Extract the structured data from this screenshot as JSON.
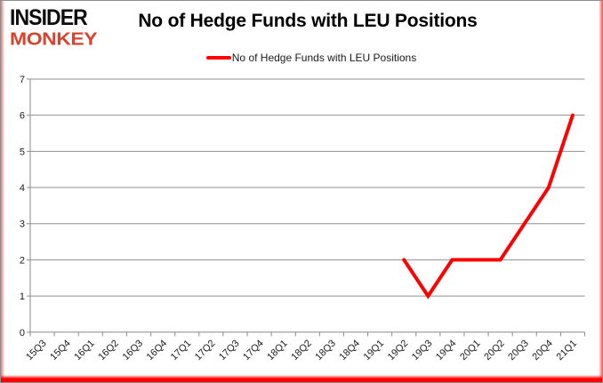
{
  "brand": {
    "line1": "INSIDER",
    "line2": "MONKEY",
    "line1_color": "#0d0d0d",
    "line2_color": "#d8432c"
  },
  "header": {
    "title": "No of Hedge Funds with LEU Positions"
  },
  "legend": {
    "label": "No of Hedge Funds with LEU Positions",
    "line_color": "#ff0000"
  },
  "chart_data": {
    "type": "line",
    "title": "No of Hedge Funds with LEU Positions",
    "categories": [
      "15Q3",
      "15Q4",
      "16Q1",
      "16Q2",
      "16Q3",
      "16Q4",
      "17Q1",
      "17Q2",
      "17Q3",
      "17Q4",
      "18Q1",
      "18Q2",
      "18Q3",
      "18Q4",
      "19Q1",
      "19Q2",
      "19Q3",
      "19Q4",
      "20Q1",
      "20Q2",
      "20Q3",
      "20Q4",
      "21Q1"
    ],
    "series": [
      {
        "name": "No of Hedge Funds with LEU Positions",
        "color": "#ff0000",
        "values": [
          null,
          null,
          null,
          null,
          null,
          null,
          null,
          null,
          null,
          null,
          null,
          null,
          null,
          null,
          null,
          2,
          1,
          2,
          2,
          2,
          3,
          4,
          6
        ]
      }
    ],
    "xlabel": "",
    "ylabel": "",
    "ylim": [
      0,
      7
    ],
    "yticks": [
      0,
      1,
      2,
      3,
      4,
      5,
      6,
      7
    ],
    "grid": true,
    "legend_position": "top",
    "gridline_color": "#8f8f8f",
    "axis_color": "#8a8a8a",
    "tick_label_color": "#1a1a1a"
  }
}
